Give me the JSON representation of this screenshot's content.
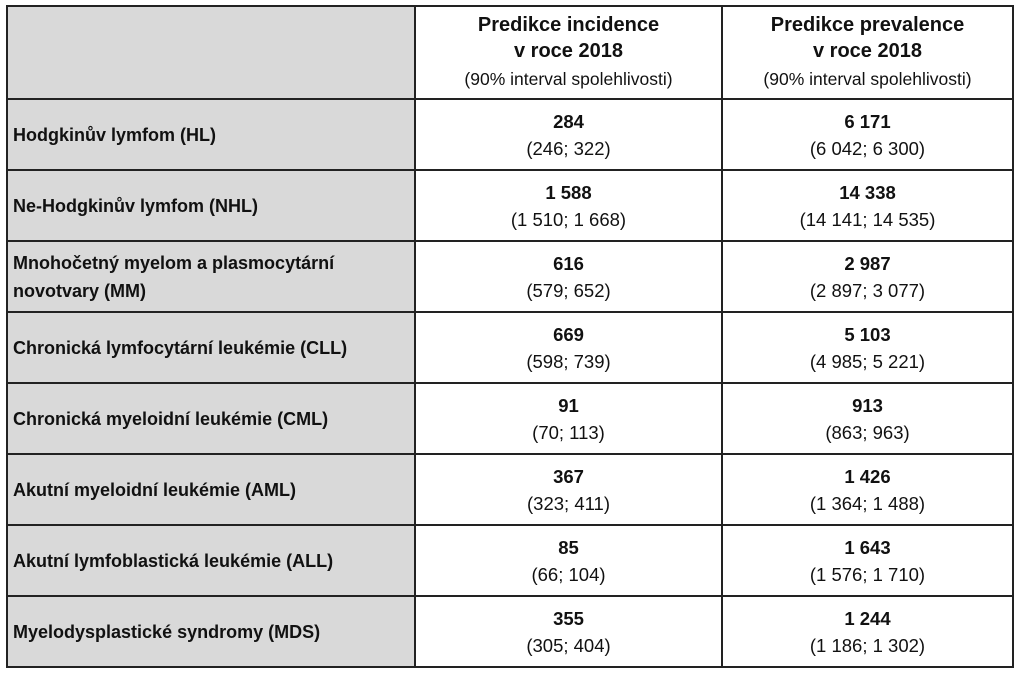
{
  "header": {
    "incidence": {
      "title_line1": "Predikce incidence",
      "title_line2": "v roce 2018",
      "subtitle": "(90% interval spolehlivosti)"
    },
    "prevalence": {
      "title_line1": "Predikce prevalence",
      "title_line2": "v roce 2018",
      "subtitle": "(90% interval spolehlivosti)"
    }
  },
  "rows": [
    {
      "label": "Hodgkinův lymfom (HL)",
      "incidence": "284",
      "incidence_ci": "(246; 322)",
      "prevalence": "6 171",
      "prevalence_ci": "(6 042; 6 300)"
    },
    {
      "label": "Ne-Hodgkinův lymfom (NHL)",
      "incidence": "1 588",
      "incidence_ci": "(1 510; 1 668)",
      "prevalence": "14 338",
      "prevalence_ci": "(14 141; 14 535)"
    },
    {
      "label": "Mnohočetný myelom a plasmocytární novotvary (MM)",
      "incidence": "616",
      "incidence_ci": "(579; 652)",
      "prevalence": "2 987",
      "prevalence_ci": "(2 897; 3 077)"
    },
    {
      "label": "Chronická lymfocytární leukémie (CLL)",
      "incidence": "669",
      "incidence_ci": "(598; 739)",
      "prevalence": "5 103",
      "prevalence_ci": "(4 985; 5 221)"
    },
    {
      "label": "Chronická myeloidní leukémie (CML)",
      "incidence": "91",
      "incidence_ci": "(70; 113)",
      "prevalence": "913",
      "prevalence_ci": "(863; 963)"
    },
    {
      "label": "Akutní myeloidní leukémie (AML)",
      "incidence": "367",
      "incidence_ci": "(323; 411)",
      "prevalence": "1 426",
      "prevalence_ci": "(1 364; 1 488)"
    },
    {
      "label": "Akutní lymfoblastická leukémie (ALL)",
      "incidence": "85",
      "incidence_ci": "(66; 104)",
      "prevalence": "1 643",
      "prevalence_ci": "(1 576; 1 710)"
    },
    {
      "label": "Myelodysplastické syndromy (MDS)",
      "incidence": "355",
      "incidence_ci": "(305; 404)",
      "prevalence": "1 244",
      "prevalence_ci": "(1 186; 1 302)"
    }
  ]
}
